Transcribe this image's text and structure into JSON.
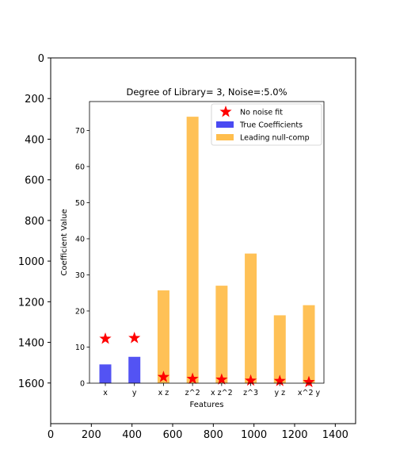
{
  "chart_data": [
    {
      "role": "outer-image-axes",
      "type": "image",
      "xlim": [
        0,
        1500
      ],
      "ylim": [
        1800,
        0
      ],
      "x_ticks": [
        0,
        200,
        400,
        600,
        800,
        1000,
        1200,
        1400
      ],
      "y_ticks": [
        0,
        200,
        400,
        600,
        800,
        1000,
        1200,
        1400,
        1600
      ]
    },
    {
      "role": "inner-bar-chart",
      "type": "bar",
      "title": "Degree of Library= 3,   Noise=:5.0%",
      "xlabel": "Features",
      "ylabel": "Coefficient Value",
      "categories": [
        "x",
        "y",
        "x z",
        "z^2",
        "x z^2",
        "z^3",
        "y z",
        "x^2 y"
      ],
      "ylim": [
        0,
        78
      ],
      "y_ticks": [
        0,
        10,
        20,
        30,
        40,
        50,
        60,
        70
      ],
      "legend_position": "top-right",
      "series": [
        {
          "name": "No noise fit",
          "kind": "star-marker",
          "color": "#ff0000",
          "values": [
            12.3,
            12.5,
            1.7,
            1.2,
            1.0,
            0.7,
            0.6,
            0.3
          ]
        },
        {
          "name": "True Coefficients",
          "kind": "bar",
          "color": "#4a4af2",
          "values": [
            5.2,
            7.3,
            null,
            null,
            null,
            null,
            null,
            null
          ]
        },
        {
          "name": "Leading null-comp",
          "kind": "bar",
          "color": "#ffbe4d",
          "values": [
            null,
            null,
            25.7,
            73.8,
            27.0,
            35.9,
            18.8,
            21.6
          ]
        }
      ]
    }
  ]
}
